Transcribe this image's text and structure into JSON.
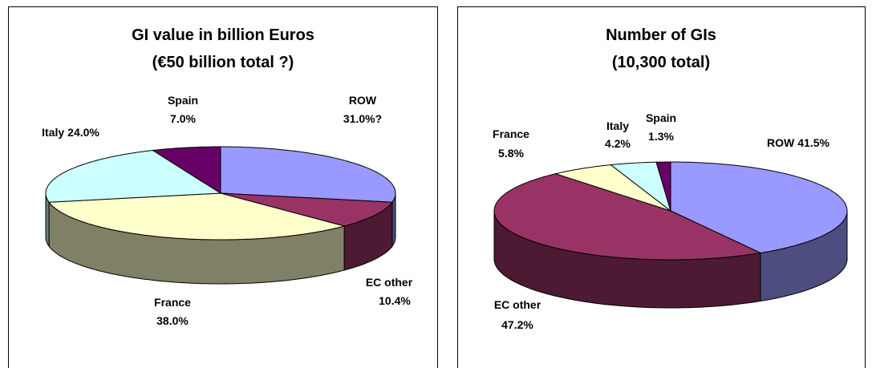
{
  "chart_data": [
    {
      "type": "pie",
      "title": "GI value in billion Euros",
      "subtitle": "(€50 billion total ?)",
      "categories": [
        "ROW",
        "EC other",
        "France",
        "Italy",
        "Spain"
      ],
      "values": [
        31.0,
        10.4,
        38.0,
        24.0,
        7.0
      ],
      "value_labels": [
        "31.0%?",
        "10.4%",
        "38.0%",
        "24.0%",
        "7.0%"
      ],
      "colors": [
        "#9999ff",
        "#993366",
        "#ffffcc",
        "#ccffff",
        "#660066"
      ]
    },
    {
      "type": "pie",
      "title": "Number of GIs",
      "subtitle": "(10,300 total)",
      "categories": [
        "ROW",
        "EC other",
        "France",
        "Italy",
        "Spain"
      ],
      "values": [
        41.5,
        47.2,
        5.8,
        4.2,
        1.3
      ],
      "value_labels": [
        "41.5%",
        "47.2%",
        "5.8%",
        "4.2%",
        "1.3%"
      ],
      "colors": [
        "#9999ff",
        "#993366",
        "#ffffcc",
        "#ccffff",
        "#660066"
      ]
    }
  ]
}
